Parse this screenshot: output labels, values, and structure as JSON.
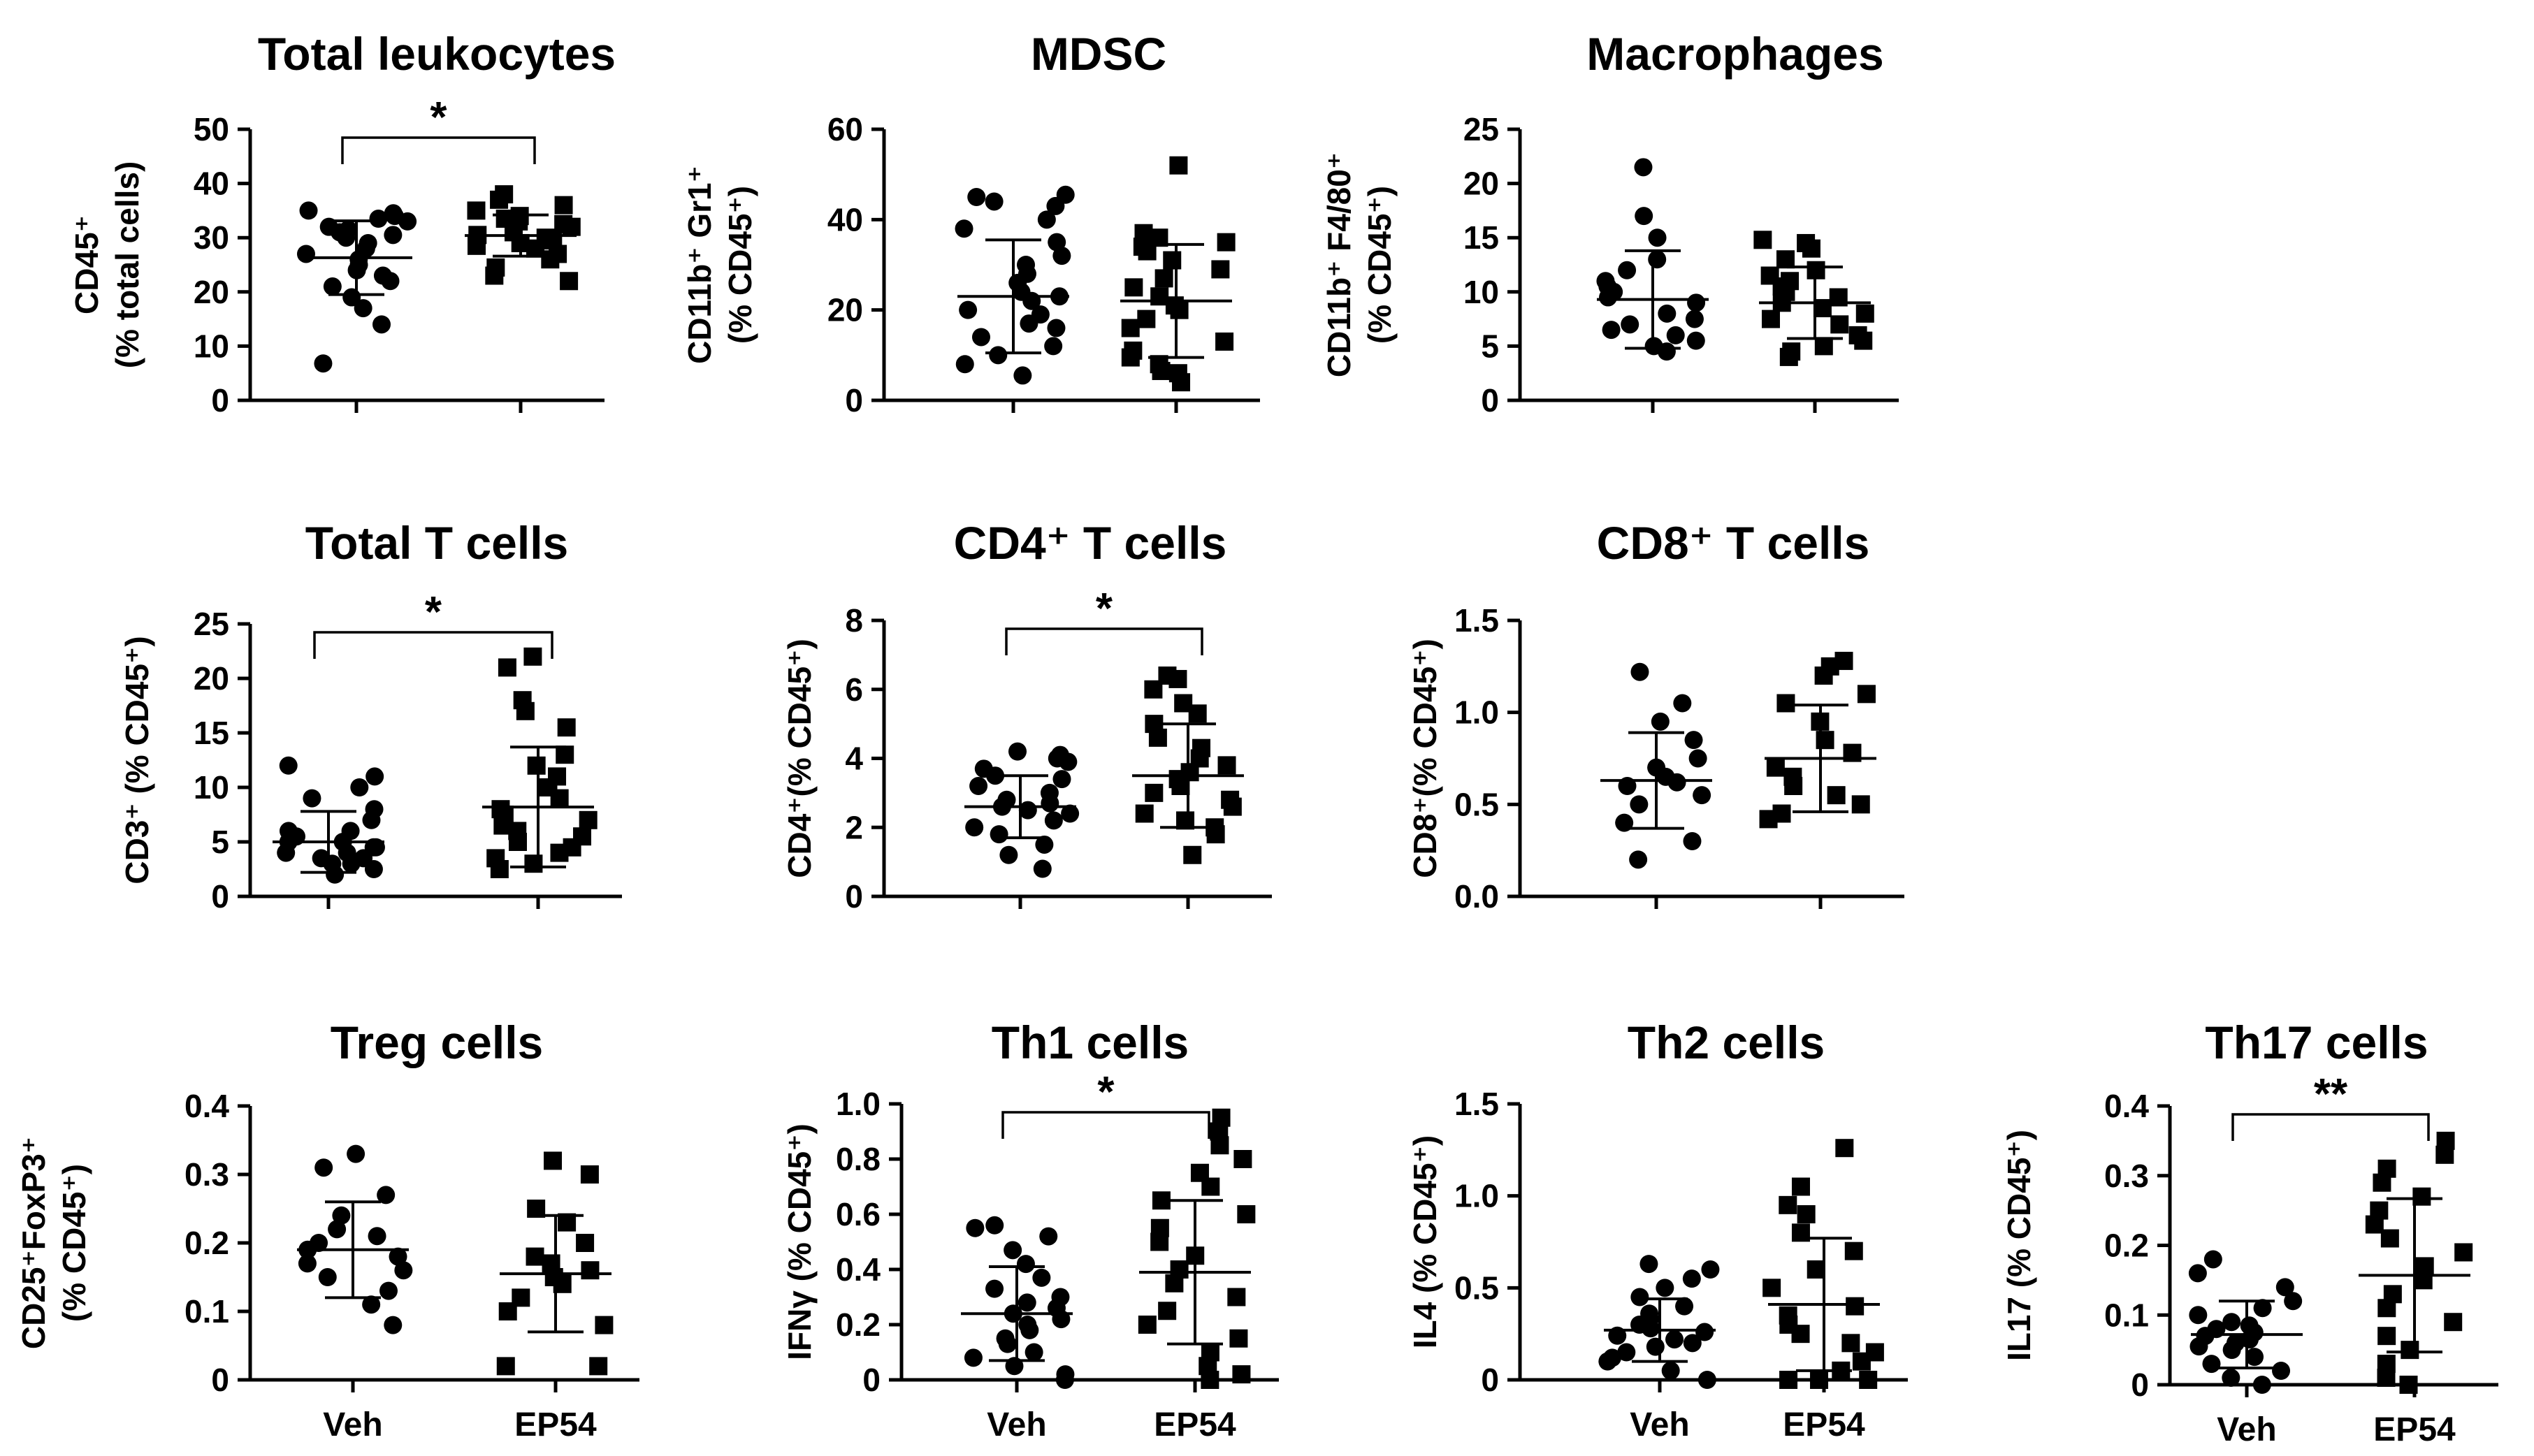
{
  "chart_data": [
    {
      "type": "scatter",
      "title": "Total leukocytes",
      "ylabel": [
        "CD45⁺",
        "(% total cells)"
      ],
      "ylim": [
        0,
        50
      ],
      "yticks": [
        "0",
        "10",
        "20",
        "30",
        "40",
        "50"
      ],
      "ytick_values": [
        0,
        10,
        20,
        30,
        40,
        50
      ],
      "categories": [
        "Veh",
        "EP54"
      ],
      "show_xlabels": false,
      "significance": "*",
      "series": [
        {
          "name": "Veh",
          "marker": "circle",
          "mean": 26.3,
          "sd": 6.8,
          "values": [
            6.8,
            14,
            17,
            19,
            21,
            22,
            23,
            24,
            25,
            26,
            27,
            28,
            29,
            30,
            30.5,
            31,
            31.5,
            32,
            33,
            33.5,
            34,
            34.5,
            35
          ]
        },
        {
          "name": "EP54",
          "marker": "square",
          "mean": 30.4,
          "sd": 3.8,
          "values": [
            22,
            23,
            24.5,
            26,
            27,
            28,
            28.5,
            29,
            29.5,
            30,
            30.5,
            31,
            32,
            32.5,
            33,
            33.5,
            34,
            35,
            36,
            37,
            38
          ]
        }
      ]
    },
    {
      "type": "scatter",
      "title": "MDSC",
      "ylabel": [
        "CD11b⁺ Gr1⁺",
        "(% CD45⁺)"
      ],
      "ylim": [
        0,
        60
      ],
      "yticks": [
        "0",
        "20",
        "40",
        "60"
      ],
      "ytick_values": [
        0,
        20,
        40,
        60
      ],
      "categories": [
        "Veh",
        "EP54"
      ],
      "show_xlabels": false,
      "significance": "",
      "series": [
        {
          "name": "Veh",
          "marker": "circle",
          "mean": 23,
          "sd": 12.5,
          "values": [
            5.5,
            8,
            10,
            12,
            14,
            16,
            17,
            19,
            20,
            22,
            23,
            24,
            26,
            28,
            30,
            32,
            35,
            38,
            40,
            43,
            44,
            45,
            45.5
          ]
        },
        {
          "name": "EP54",
          "marker": "square",
          "mean": 22,
          "sd": 12.5,
          "values": [
            4,
            6,
            6.5,
            8,
            9.5,
            11,
            13,
            16,
            18,
            20,
            21,
            23,
            25,
            27,
            29,
            31,
            33,
            34,
            35,
            36,
            37,
            52
          ]
        }
      ]
    },
    {
      "type": "scatter",
      "title": "Macrophages",
      "ylabel": [
        "CD11b⁺ F4/80⁺",
        "(% CD45⁺)"
      ],
      "ylim": [
        0,
        25
      ],
      "yticks": [
        "0",
        "5",
        "10",
        "15",
        "20",
        "25"
      ],
      "ytick_values": [
        0,
        5,
        10,
        15,
        20,
        25
      ],
      "categories": [
        "Veh",
        "EP54"
      ],
      "show_xlabels": false,
      "significance": "",
      "series": [
        {
          "name": "Veh",
          "marker": "circle",
          "mean": 9.3,
          "sd": 4.5,
          "values": [
            4.5,
            5,
            5.5,
            6,
            6.5,
            7,
            7.5,
            8,
            9,
            9.5,
            10,
            10.5,
            11,
            12,
            13,
            15,
            17,
            21.5
          ]
        },
        {
          "name": "EP54",
          "marker": "square",
          "mean": 9,
          "sd": 3.3,
          "values": [
            4,
            4.5,
            5,
            5.5,
            6,
            7,
            7.5,
            8,
            8.5,
            9,
            9.5,
            10,
            10.5,
            11,
            11.5,
            12,
            13,
            14,
            14.5,
            14.8
          ]
        }
      ]
    },
    {
      "type": "scatter",
      "title": "Total T cells",
      "ylabel": [
        "CD3⁺ (% CD45⁺)"
      ],
      "ylim": [
        0,
        25
      ],
      "yticks": [
        "0",
        "5",
        "10",
        "15",
        "20",
        "25"
      ],
      "ytick_values": [
        0,
        5,
        10,
        15,
        20,
        25
      ],
      "categories": [
        "Veh",
        "EP54"
      ],
      "show_xlabels": false,
      "significance": "*",
      "series": [
        {
          "name": "Veh",
          "marker": "circle",
          "mean": 5,
          "sd": 2.8,
          "values": [
            2,
            2.5,
            3,
            3,
            3.5,
            3.5,
            4,
            4,
            4.5,
            4.5,
            5,
            5,
            5.5,
            6,
            6,
            7,
            8,
            9,
            10,
            11,
            12
          ]
        },
        {
          "name": "EP54",
          "marker": "square",
          "mean": 8.2,
          "sd": 5.5,
          "values": [
            2.5,
            3,
            3.5,
            4,
            4.5,
            5,
            5.5,
            6,
            6.5,
            7,
            7.5,
            8,
            9,
            10,
            11,
            12,
            13,
            15.5,
            17,
            18,
            21,
            22
          ]
        }
      ]
    },
    {
      "type": "scatter",
      "title": "CD4⁺ T cells",
      "ylabel": [
        "CD4⁺(% CD45⁺)"
      ],
      "ylim": [
        0,
        8
      ],
      "yticks": [
        "0",
        "2",
        "4",
        "6",
        "8"
      ],
      "ytick_values": [
        0,
        2,
        4,
        6,
        8
      ],
      "categories": [
        "Veh",
        "EP54"
      ],
      "show_xlabels": false,
      "significance": "*",
      "series": [
        {
          "name": "Veh",
          "marker": "circle",
          "mean": 2.6,
          "sd": 0.9,
          "values": [
            0.8,
            1.2,
            1.5,
            1.8,
            2,
            2.2,
            2.4,
            2.5,
            2.6,
            2.7,
            2.8,
            3,
            3.2,
            3.4,
            3.5,
            3.7,
            3.9,
            4,
            4.1,
            4.2
          ]
        },
        {
          "name": "EP54",
          "marker": "square",
          "mean": 3.5,
          "sd": 1.5,
          "values": [
            1.2,
            1.8,
            2,
            2.2,
            2.4,
            2.6,
            2.8,
            3,
            3.2,
            3.4,
            3.6,
            3.8,
            4,
            4.3,
            4.6,
            5,
            5.3,
            5.6,
            6,
            6.3,
            6.4
          ]
        }
      ]
    },
    {
      "type": "scatter",
      "title": "CD8⁺ T cells",
      "ylabel": [
        "CD8⁺(% CD45⁺)"
      ],
      "ylim": [
        0,
        1.5
      ],
      "yticks": [
        "0.0",
        "0.5",
        "1.0",
        "1.5"
      ],
      "ytick_values": [
        0,
        0.5,
        1.0,
        1.5
      ],
      "categories": [
        "Veh",
        "EP54"
      ],
      "show_xlabels": false,
      "significance": "",
      "series": [
        {
          "name": "Veh",
          "marker": "circle",
          "mean": 0.63,
          "sd": 0.26,
          "values": [
            0.2,
            0.3,
            0.4,
            0.5,
            0.55,
            0.6,
            0.62,
            0.65,
            0.7,
            0.75,
            0.85,
            0.95,
            1.05,
            1.22
          ]
        },
        {
          "name": "EP54",
          "marker": "square",
          "mean": 0.75,
          "sd": 0.29,
          "values": [
            0.42,
            0.45,
            0.5,
            0.55,
            0.6,
            0.65,
            0.7,
            0.78,
            0.85,
            0.95,
            1.05,
            1.1,
            1.2,
            1.25,
            1.28
          ]
        }
      ]
    },
    {
      "type": "scatter",
      "title": "Treg cells",
      "ylabel": [
        "CD25⁺FoxP3⁺",
        "(% CD45⁺)"
      ],
      "ylim": [
        0,
        0.4
      ],
      "yticks": [
        "0",
        "0.1",
        "0.2",
        "0.3",
        "0.4"
      ],
      "ytick_values": [
        0,
        0.1,
        0.2,
        0.3,
        0.4
      ],
      "categories": [
        "Veh",
        "EP54"
      ],
      "show_xlabels": true,
      "significance": "",
      "series": [
        {
          "name": "Veh",
          "marker": "circle",
          "mean": 0.19,
          "sd": 0.07,
          "values": [
            0.08,
            0.11,
            0.13,
            0.15,
            0.16,
            0.17,
            0.18,
            0.19,
            0.2,
            0.21,
            0.22,
            0.24,
            0.27,
            0.31,
            0.33
          ]
        },
        {
          "name": "EP54",
          "marker": "square",
          "mean": 0.155,
          "sd": 0.085,
          "values": [
            0.02,
            0.02,
            0.08,
            0.1,
            0.12,
            0.14,
            0.15,
            0.16,
            0.17,
            0.18,
            0.2,
            0.23,
            0.25,
            0.3,
            0.32
          ]
        }
      ]
    },
    {
      "type": "scatter",
      "title": "Th1 cells",
      "ylabel": [
        "IFNγ (% CD45⁺)"
      ],
      "ylim": [
        0,
        1.0
      ],
      "yticks": [
        "0",
        "0.2",
        "0.4",
        "0.6",
        "0.8",
        "1.0"
      ],
      "ytick_values": [
        0,
        0.2,
        0.4,
        0.6,
        0.8,
        1.0
      ],
      "categories": [
        "Veh",
        "EP54"
      ],
      "show_xlabels": true,
      "significance": "*",
      "series": [
        {
          "name": "Veh",
          "marker": "circle",
          "mean": 0.24,
          "sd": 0.17,
          "values": [
            0,
            0.02,
            0.05,
            0.08,
            0.1,
            0.13,
            0.15,
            0.18,
            0.2,
            0.22,
            0.24,
            0.26,
            0.28,
            0.3,
            0.33,
            0.37,
            0.42,
            0.47,
            0.52,
            0.55,
            0.56
          ]
        },
        {
          "name": "EP54",
          "marker": "square",
          "mean": 0.39,
          "sd": 0.26,
          "values": [
            0,
            0.02,
            0.05,
            0.1,
            0.15,
            0.2,
            0.25,
            0.3,
            0.35,
            0.4,
            0.45,
            0.5,
            0.55,
            0.6,
            0.65,
            0.7,
            0.75,
            0.8,
            0.85,
            0.9,
            0.95
          ]
        }
      ]
    },
    {
      "type": "scatter",
      "title": "Th2 cells",
      "ylabel": [
        "IL4 (% CD45⁺)"
      ],
      "ylim": [
        0,
        1.5
      ],
      "yticks": [
        "0",
        "0.5",
        "1.0",
        "1.5"
      ],
      "ytick_values": [
        0,
        0.5,
        1.0,
        1.5
      ],
      "categories": [
        "Veh",
        "EP54"
      ],
      "show_xlabels": true,
      "significance": "",
      "series": [
        {
          "name": "Veh",
          "marker": "circle",
          "mean": 0.27,
          "sd": 0.17,
          "values": [
            0,
            0.05,
            0.1,
            0.12,
            0.15,
            0.18,
            0.2,
            0.22,
            0.24,
            0.26,
            0.28,
            0.3,
            0.33,
            0.36,
            0.4,
            0.45,
            0.5,
            0.55,
            0.6,
            0.63
          ]
        },
        {
          "name": "EP54",
          "marker": "square",
          "mean": 0.41,
          "sd": 0.36,
          "values": [
            0,
            0,
            0,
            0.05,
            0.1,
            0.15,
            0.2,
            0.25,
            0.3,
            0.35,
            0.4,
            0.5,
            0.6,
            0.7,
            0.8,
            0.9,
            0.95,
            1.05,
            1.26
          ]
        }
      ]
    },
    {
      "type": "scatter",
      "title": "Th17 cells",
      "ylabel": [
        "IL17 (% CD45⁺)"
      ],
      "ylim": [
        0,
        0.4
      ],
      "yticks": [
        "0",
        "0.1",
        "0.2",
        "0.3",
        "0.4"
      ],
      "ytick_values": [
        0,
        0.1,
        0.2,
        0.3,
        0.4
      ],
      "categories": [
        "Veh",
        "EP54"
      ],
      "show_xlabels": true,
      "significance": "**",
      "series": [
        {
          "name": "Veh",
          "marker": "circle",
          "mean": 0.072,
          "sd": 0.048,
          "values": [
            0,
            0.01,
            0.02,
            0.03,
            0.04,
            0.05,
            0.055,
            0.06,
            0.065,
            0.07,
            0.075,
            0.08,
            0.085,
            0.09,
            0.1,
            0.11,
            0.12,
            0.14,
            0.16,
            0.18
          ]
        },
        {
          "name": "EP54",
          "marker": "square",
          "mean": 0.157,
          "sd": 0.11,
          "values": [
            0,
            0.01,
            0.03,
            0.05,
            0.07,
            0.09,
            0.11,
            0.13,
            0.15,
            0.17,
            0.19,
            0.21,
            0.23,
            0.25,
            0.27,
            0.29,
            0.31,
            0.33,
            0.35
          ]
        }
      ]
    }
  ]
}
